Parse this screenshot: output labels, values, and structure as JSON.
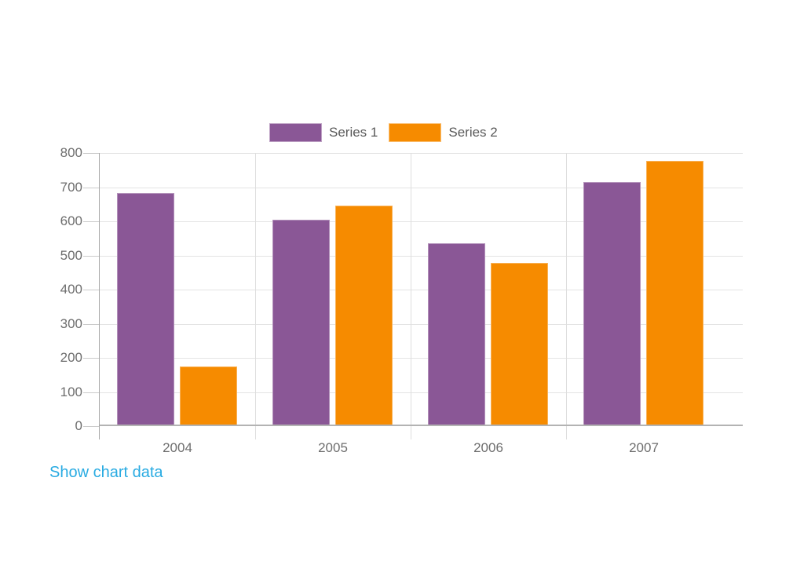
{
  "chart_data": {
    "type": "bar",
    "title": "",
    "categories": [
      "2004",
      "2005",
      "2006",
      "2007"
    ],
    "series": [
      {
        "name": "Series 1",
        "color": "#8a5796",
        "values": [
          682,
          604,
          536,
          714
        ]
      },
      {
        "name": "Series 2",
        "color": "#f68b00",
        "values": [
          174,
          647,
          478,
          778
        ]
      }
    ],
    "ylim": [
      0,
      800
    ],
    "ytick_step": 100,
    "ytick_labels": [
      "0",
      "100",
      "200",
      "300",
      "400",
      "500",
      "600",
      "700",
      "800"
    ],
    "grid": true,
    "legend_position": "top-center",
    "colors": {
      "axis_text": "#6e6e6e",
      "legend_text": "#595959",
      "gridline": "#e4e4e4",
      "axis_line": "#b3b3b3"
    }
  },
  "link": {
    "label": "Show chart data",
    "color": "#29abe2"
  }
}
